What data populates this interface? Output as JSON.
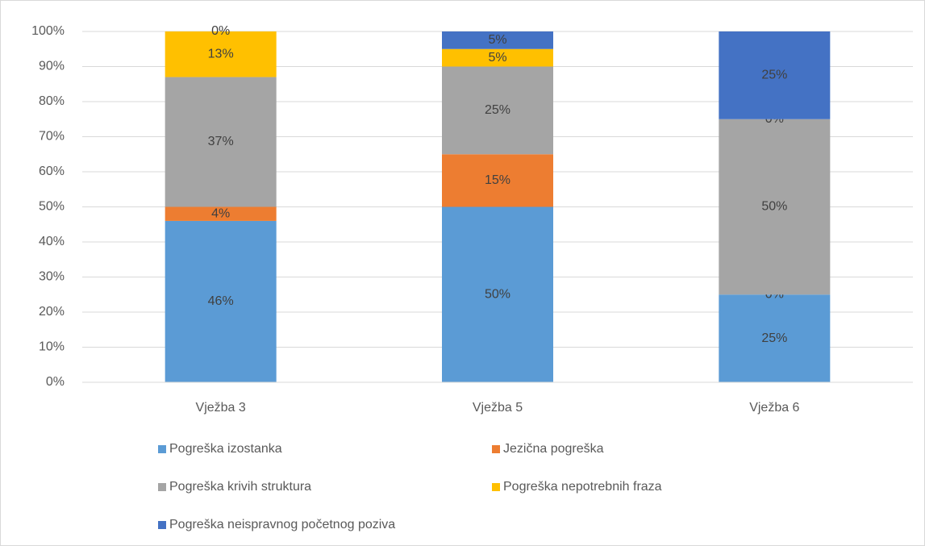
{
  "chart_data": {
    "type": "bar",
    "stacked": true,
    "categories": [
      "Vježba 3",
      "Vježba 5",
      "Vježba 6"
    ],
    "series": [
      {
        "name": "Pogreška izostanka",
        "color": "#5b9bd5",
        "values": [
          46,
          50,
          25
        ],
        "value_labels": [
          "46%",
          "50%",
          "25%"
        ]
      },
      {
        "name": "Jezična pogreška",
        "color": "#ed7d31",
        "values": [
          4,
          15,
          0
        ],
        "value_labels": [
          "4%",
          "15%",
          "0%"
        ]
      },
      {
        "name": "Pogreška krivih struktura",
        "color": "#a5a5a5",
        "values": [
          37,
          25,
          50
        ],
        "value_labels": [
          "37%",
          "25%",
          "50%"
        ]
      },
      {
        "name": "Pogreška nepotrebnih fraza",
        "color": "#ffc000",
        "values": [
          13,
          5,
          0
        ],
        "value_labels": [
          "13%",
          "5%",
          "0%"
        ]
      },
      {
        "name": "Pogreška neispravnog početnog poziva",
        "color": "#4472c4",
        "values": [
          0,
          5,
          25
        ],
        "value_labels": [
          "0%",
          "5%",
          "25%"
        ]
      }
    ],
    "ylim": [
      0,
      100
    ],
    "yticks": [
      {
        "value": 0,
        "label": "0%"
      },
      {
        "value": 10,
        "label": "10%"
      },
      {
        "value": 20,
        "label": "20%"
      },
      {
        "value": 30,
        "label": "30%"
      },
      {
        "value": 40,
        "label": "40%"
      },
      {
        "value": 50,
        "label": "50%"
      },
      {
        "value": 60,
        "label": "60%"
      },
      {
        "value": 70,
        "label": "70%"
      },
      {
        "value": 80,
        "label": "80%"
      },
      {
        "value": 90,
        "label": "90%"
      },
      {
        "value": 100,
        "label": "100%"
      }
    ],
    "grid": true,
    "legend": "bottom"
  }
}
